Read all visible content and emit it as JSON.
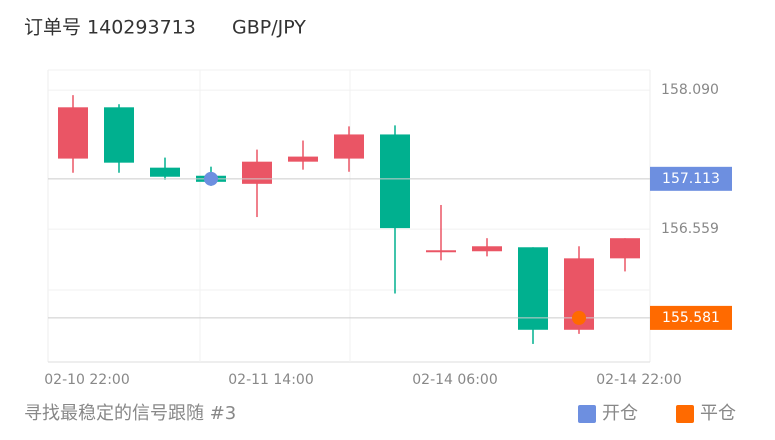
{
  "header": {
    "order": "订单号 140293713",
    "symbol": "GBP/JPY"
  },
  "chart_data": {
    "type": "candlestick",
    "categories": [
      "02-10 22:00",
      null,
      null,
      null,
      "02-11 14:00",
      null,
      null,
      null,
      "02-14 06:00",
      null,
      null,
      null,
      "02-14 22:00"
    ],
    "open": [
      157.336,
      157.901,
      157.236,
      157.147,
      157.058,
      157.302,
      157.336,
      157.602,
      156.304,
      156.315,
      156.359,
      155.45,
      156.237
    ],
    "high": [
      158.035,
      157.935,
      157.347,
      157.247,
      157.435,
      157.535,
      157.691,
      157.702,
      156.825,
      156.459,
      156.359,
      156.37,
      156.459
    ],
    "low": [
      157.18,
      157.18,
      157.103,
      157.036,
      156.692,
      157.214,
      157.191,
      155.849,
      156.215,
      156.259,
      155.294,
      155.405,
      156.093
    ],
    "close": [
      157.901,
      157.291,
      157.136,
      157.08,
      157.302,
      157.358,
      157.602,
      156.57,
      156.326,
      156.37,
      155.45,
      156.237,
      156.459
    ],
    "up_color": "#ea5565",
    "down_color": "#00b08f",
    "series": [
      {
        "name": "开仓",
        "color": "#6d8fe0",
        "values": [
          null,
          null,
          null,
          157.113,
          null,
          null,
          null,
          null,
          null,
          null,
          null,
          null,
          null
        ]
      },
      {
        "name": "平仓",
        "color": "#ff6a00",
        "values": [
          null,
          null,
          null,
          null,
          null,
          null,
          null,
          null,
          null,
          null,
          null,
          155.581,
          null
        ]
      }
    ],
    "ylim": [
      155.095,
      158.312
    ],
    "yticks": [
      {
        "value": 158.09,
        "label": "158.090"
      },
      156.559
    ],
    "grid": true
  },
  "footer": "寻找最稳定的信号跟随 #3"
}
